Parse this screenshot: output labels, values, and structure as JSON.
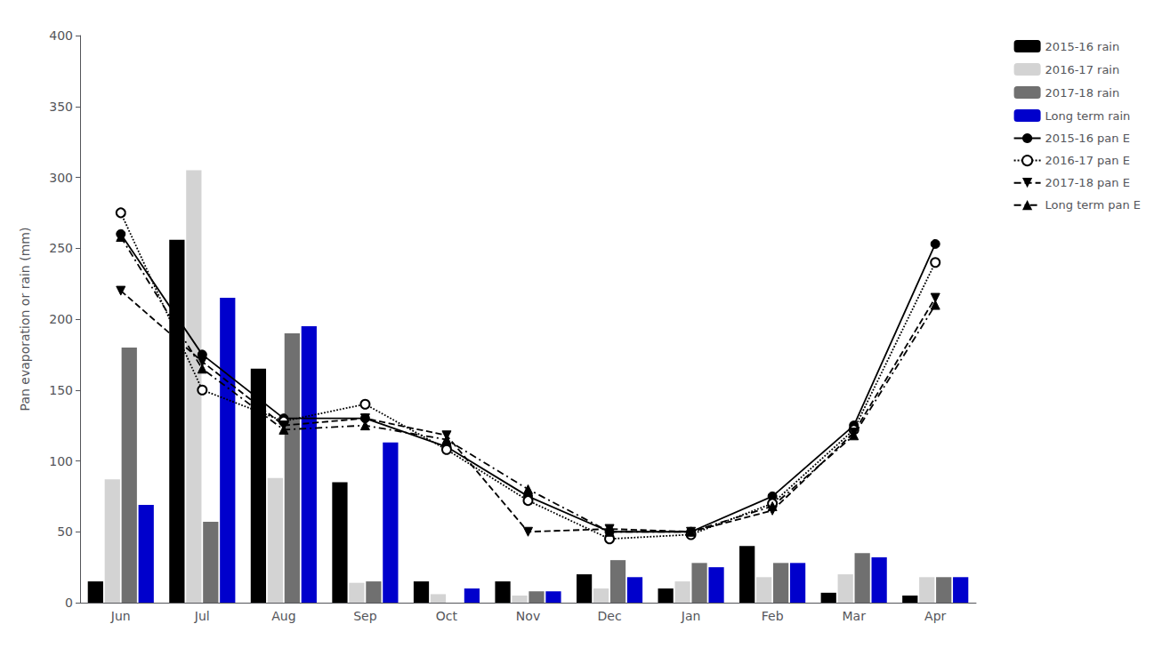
{
  "chart_data": {
    "type": "bar",
    "categories": [
      "Jun",
      "Jul",
      "Aug",
      "Sep",
      "Oct",
      "Nov",
      "Dec",
      "Jan",
      "Feb",
      "Mar",
      "Apr"
    ],
    "ylabel": "Pan evaporation or rain (mm)",
    "ylim": [
      0,
      400
    ],
    "yticks": [
      0,
      50,
      100,
      150,
      200,
      250,
      300,
      350,
      400
    ],
    "grid": false,
    "legend": "upper right",
    "series": [
      {
        "name": "2015-16 rain",
        "type": "bar",
        "color": "#000000",
        "values": [
          15,
          256,
          165,
          85,
          15,
          15,
          20,
          10,
          40,
          7,
          5
        ]
      },
      {
        "name": "2016-17 rain",
        "type": "bar",
        "color": "#d3d3d3",
        "values": [
          87,
          305,
          88,
          14,
          6,
          5,
          10,
          15,
          18,
          20,
          18
        ]
      },
      {
        "name": "2017-18 rain",
        "type": "bar",
        "color": "#707070",
        "values": [
          180,
          57,
          190,
          15,
          0,
          8,
          30,
          28,
          28,
          35,
          18
        ]
      },
      {
        "name": "Long term rain",
        "type": "bar",
        "color": "#0000cc",
        "values": [
          69,
          215,
          195,
          113,
          10,
          8,
          18,
          25,
          28,
          32,
          18
        ]
      },
      {
        "name": "2015-16 pan E",
        "type": "line",
        "color": "#000000",
        "marker": "circle",
        "line_style": "solid",
        "values": [
          260,
          175,
          130,
          130,
          110,
          75,
          50,
          50,
          75,
          125,
          253
        ]
      },
      {
        "name": "2016-17 pan E",
        "type": "line",
        "color": "#000000",
        "marker": "open_circle",
        "line_style": "dotted",
        "values": [
          275,
          150,
          128,
          140,
          108,
          72,
          45,
          48,
          70,
          122,
          240
        ]
      },
      {
        "name": "2017-18 pan E",
        "type": "line",
        "color": "#000000",
        "marker": "triangle_down",
        "line_style": "dashed",
        "values": [
          220,
          170,
          125,
          130,
          118,
          50,
          52,
          50,
          65,
          120,
          215
        ]
      },
      {
        "name": "Long term pan E",
        "type": "line",
        "color": "#000000",
        "marker": "triangle_up",
        "line_style": "dashdot",
        "values": [
          258,
          165,
          122,
          125,
          115,
          80,
          50,
          50,
          68,
          118,
          210
        ]
      }
    ]
  }
}
